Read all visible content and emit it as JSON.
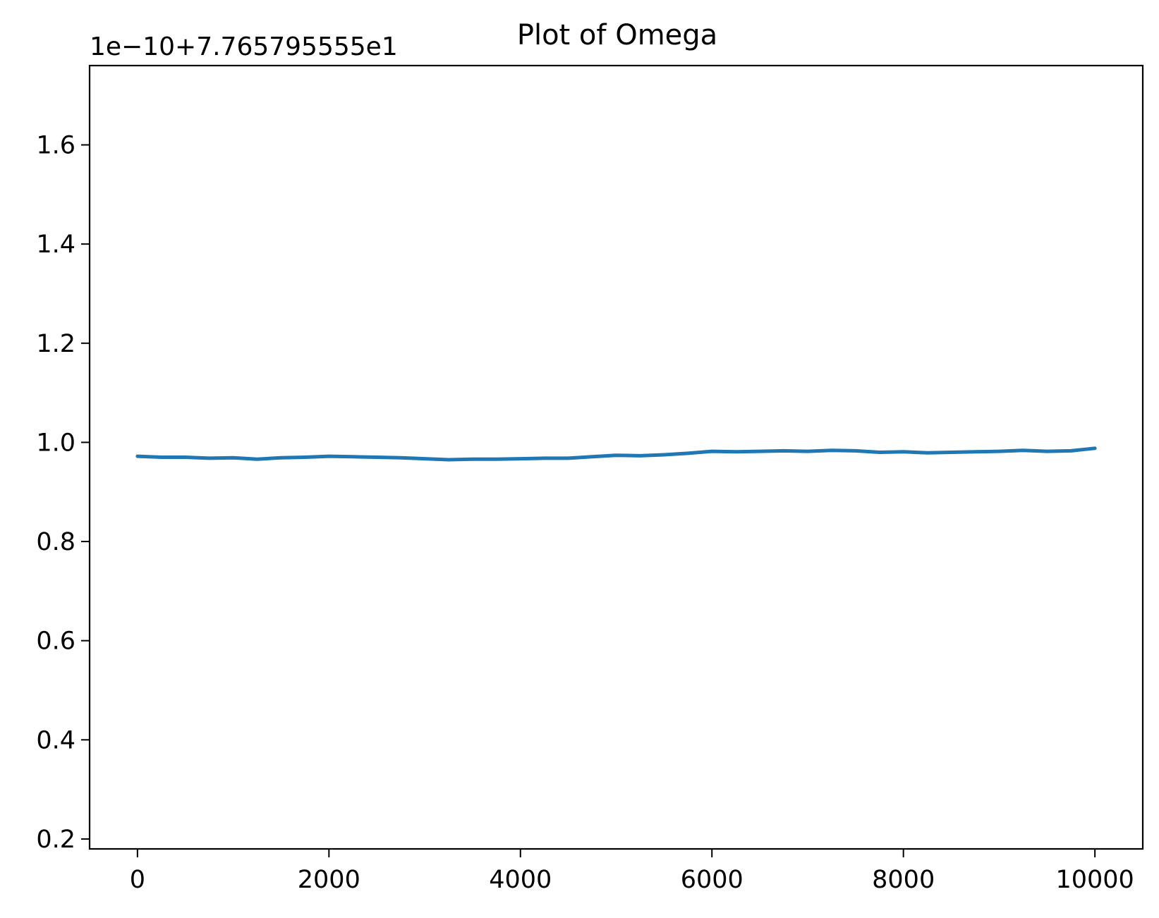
{
  "chart_data": {
    "type": "line",
    "title": "Plot of Omega",
    "xlabel": "",
    "ylabel": "",
    "offset_text": "1e−10+7.765795555e1",
    "xlim": [
      -500,
      10500
    ],
    "ylim": [
      0.18,
      1.76
    ],
    "x_ticks": [
      0,
      2000,
      4000,
      6000,
      8000,
      10000
    ],
    "x_tick_labels": [
      "0",
      "2000",
      "4000",
      "6000",
      "8000",
      "10000"
    ],
    "y_ticks": [
      0.2,
      0.4,
      0.6,
      0.8,
      1.0,
      1.2,
      1.4,
      1.6
    ],
    "y_tick_labels": [
      "0.2",
      "0.4",
      "0.6",
      "0.8",
      "1.0",
      "1.2",
      "1.4",
      "1.6"
    ],
    "grid": false,
    "series": [
      {
        "name": "Omega",
        "color": "#1f77b4",
        "x": [
          0,
          250,
          500,
          750,
          1000,
          1250,
          1500,
          1750,
          2000,
          2250,
          2500,
          2750,
          3000,
          3250,
          3500,
          3750,
          4000,
          4250,
          4500,
          4750,
          5000,
          5250,
          5500,
          5750,
          6000,
          6250,
          6500,
          6750,
          7000,
          7250,
          7500,
          7750,
          8000,
          8250,
          8500,
          8750,
          9000,
          9250,
          9500,
          9750,
          10000
        ],
        "y": [
          0.972,
          0.97,
          0.97,
          0.968,
          0.969,
          0.966,
          0.969,
          0.97,
          0.972,
          0.971,
          0.97,
          0.969,
          0.967,
          0.965,
          0.966,
          0.966,
          0.967,
          0.968,
          0.968,
          0.971,
          0.974,
          0.973,
          0.975,
          0.978,
          0.982,
          0.981,
          0.982,
          0.983,
          0.982,
          0.984,
          0.983,
          0.98,
          0.981,
          0.979,
          0.98,
          0.981,
          0.982,
          0.984,
          0.982,
          0.983,
          0.988
        ]
      }
    ]
  }
}
